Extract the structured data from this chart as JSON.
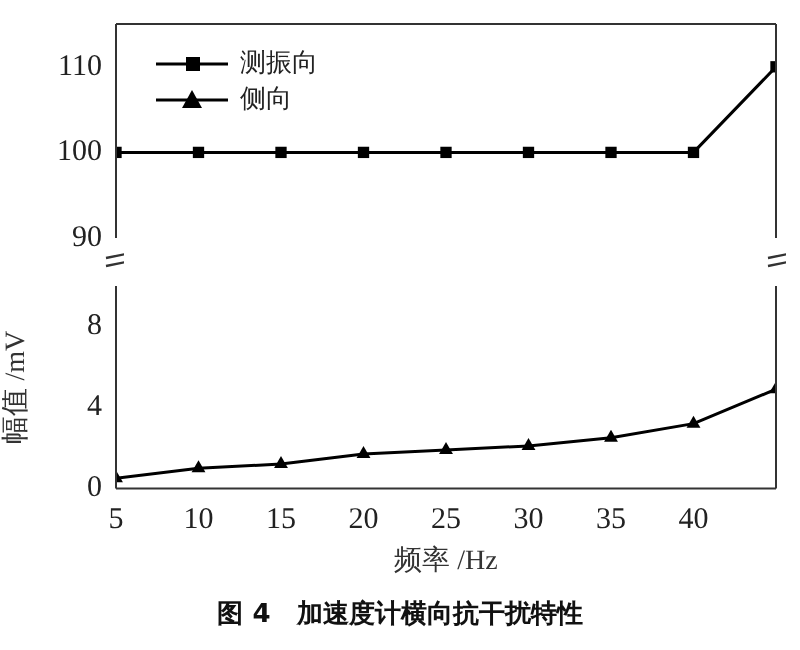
{
  "chart_data": [
    {
      "type": "line",
      "x": [
        5,
        10,
        15,
        20,
        25,
        30,
        35,
        40,
        45
      ],
      "xlim": [
        5,
        45
      ],
      "xticks": [
        5,
        10,
        15,
        20,
        25,
        30,
        35,
        40
      ],
      "ylim": [
        90,
        115
      ],
      "yticks": [
        90,
        100,
        110
      ],
      "tick_labels": "y",
      "grid": false,
      "legend": "top left",
      "line_style": "solid",
      "series": [
        {
          "name": "测振向",
          "color": "#000000",
          "marker": "square",
          "values": [
            100,
            100,
            100,
            100,
            100,
            100,
            100,
            100,
            110
          ]
        },
        {
          "name": "侧向",
          "color": "#000000",
          "marker": "triangle",
          "values": [
            null,
            null,
            null,
            null,
            null,
            null,
            null,
            null,
            null
          ]
        }
      ]
    },
    {
      "type": "line",
      "x": [
        5,
        10,
        15,
        20,
        25,
        30,
        35,
        40,
        45
      ],
      "xlim": [
        5,
        45
      ],
      "xticks": [
        5,
        10,
        15,
        20,
        25,
        30,
        35,
        40
      ],
      "ylim": [
        0,
        10
      ],
      "yticks": [
        0,
        4,
        8
      ],
      "grid": false,
      "legend": false,
      "line_style": "solid",
      "xlabel": "频率 /Hz",
      "ylabel": "幅值 /mV",
      "annotations": [
        "图 4　加速度计横向抗干扰特性"
      ],
      "series": [
        {
          "color": "#000000",
          "marker": "triangle",
          "values": [
            0.5,
            1.0,
            1.2,
            1.7,
            1.9,
            2.1,
            2.5,
            3.2,
            4.9
          ]
        }
      ]
    }
  ]
}
